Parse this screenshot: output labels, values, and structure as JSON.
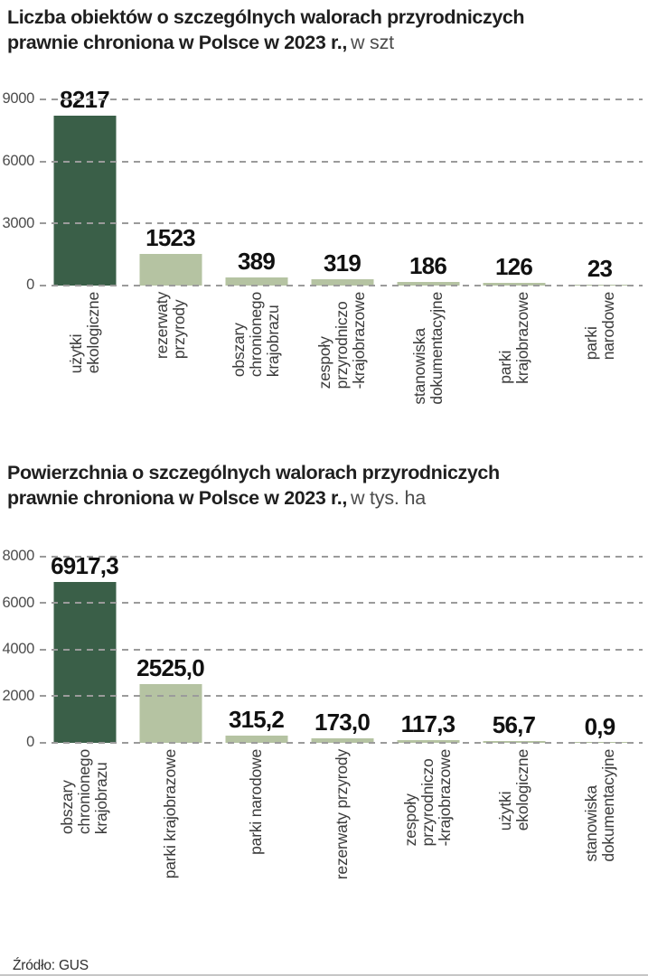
{
  "page": {
    "source_label": "Źródło: GUS"
  },
  "colors": {
    "bar_highlight": "#3a5f48",
    "bar_default": "#b5c3a2",
    "grid": "#9b9b9b"
  },
  "chart_data": [
    {
      "type": "bar",
      "title_line1": "Liczba obiektów o szczególnych walorach przyrodniczych",
      "title_line2": "prawnie chroniona w Polsce w 2023 r.,",
      "unit_suffix": "w szt",
      "ylim": [
        0,
        9000
      ],
      "yticks": [
        0,
        3000,
        6000,
        9000
      ],
      "grid": "horizontal-dashed",
      "legend": "none",
      "highlight_index": 0,
      "categories": [
        [
          "użytki",
          "ekologiczne"
        ],
        [
          "rezerwaty",
          "przyrody"
        ],
        [
          "obszary",
          "chronionego",
          "krajobrazu"
        ],
        [
          "zespoły",
          "przyrodniczo",
          "-krajobrazowe"
        ],
        [
          "stanowiska",
          "dokumentacyjne"
        ],
        [
          "parki",
          "krajobrazowe"
        ],
        [
          "parki",
          "narodowe"
        ]
      ],
      "values": [
        8217,
        1523,
        389,
        319,
        186,
        126,
        23
      ],
      "value_labels": [
        "8217",
        "1523",
        "389",
        "319",
        "186",
        "126",
        "23"
      ]
    },
    {
      "type": "bar",
      "title_line1": "Powierzchnia o szczególnych walorach przyrodniczych",
      "title_line2": "prawnie chroniona w Polsce w 2023 r.,",
      "unit_suffix": "w tys. ha",
      "ylim": [
        0,
        8000
      ],
      "yticks": [
        0,
        2000,
        4000,
        6000,
        8000
      ],
      "grid": "horizontal-dashed",
      "legend": "none",
      "highlight_index": 0,
      "categories": [
        [
          "obszary",
          "chronionego",
          "krajobrazu"
        ],
        [
          "parki krajobrazowe"
        ],
        [
          "parki narodowe"
        ],
        [
          "rezerwaty przyrody"
        ],
        [
          "zespoły",
          "przyrodniczo",
          "-krajobrazowe"
        ],
        [
          "użytki",
          "ekologiczne"
        ],
        [
          "stanowiska",
          "dokumentacyjne"
        ]
      ],
      "values": [
        6917.3,
        2525.0,
        315.2,
        173.0,
        117.3,
        56.7,
        0.9
      ],
      "value_labels": [
        "6917,3",
        "2525,0",
        "315,2",
        "173,0",
        "117,3",
        "56,7",
        "0,9"
      ]
    }
  ]
}
